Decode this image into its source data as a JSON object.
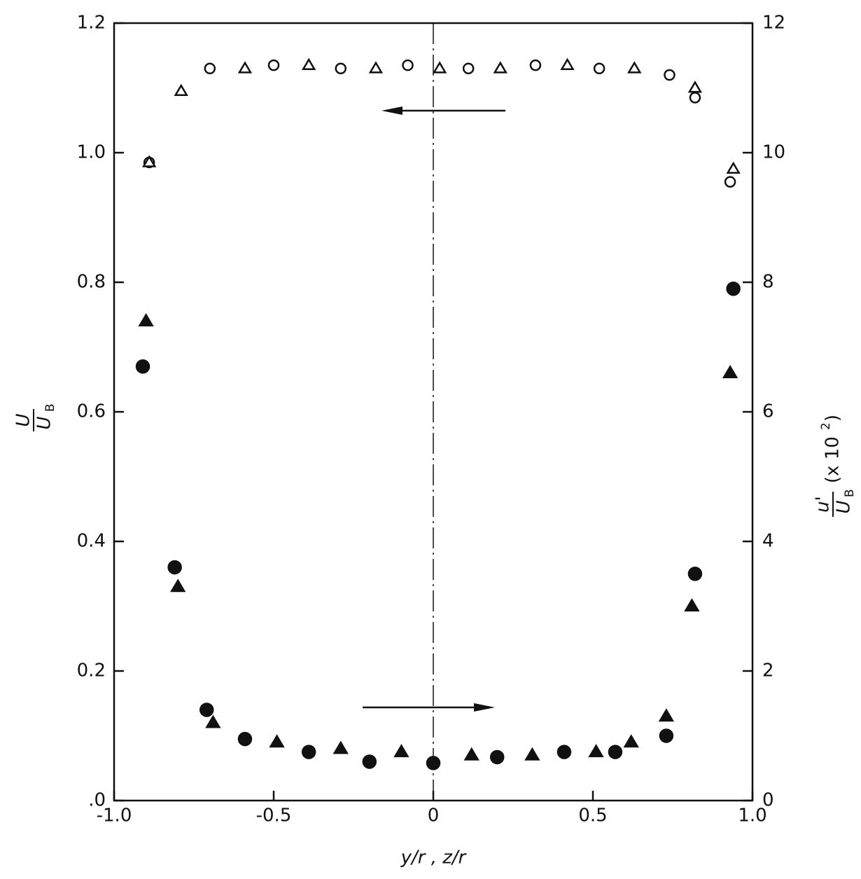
{
  "chart_data": {
    "type": "scatter",
    "xlabel": "y/r , z/r",
    "ylabel_numerator": "U",
    "ylabel_denominator": "U",
    "ylabel_subscript": "B",
    "y2label_numerator": "u'",
    "y2label_denominator": "U",
    "y2label_subscript": "B",
    "y2label_factor": [
      "(x 10",
      "2",
      ")"
    ],
    "xlim": [
      -1,
      1
    ],
    "xticks": [
      {
        "value": -1,
        "label": "-1.0"
      },
      -0.5,
      0,
      0.5,
      {
        "value": 1,
        "label": "1.0"
      }
    ],
    "ylim": [
      0,
      1.2
    ],
    "yticks": [
      {
        "value": 0,
        "label": ".0"
      },
      0.2,
      0.4,
      0.6,
      0.8,
      {
        "value": 1,
        "label": "1.0"
      },
      1.2
    ],
    "y2lim": [
      0,
      12
    ],
    "y2ticks": [
      0,
      2,
      4,
      6,
      8,
      10,
      12
    ],
    "series": [
      {
        "color": "#111111",
        "marker": "circle",
        "filled": false,
        "x": [
          -0.89,
          -0.7,
          -0.5,
          -0.29,
          -0.08,
          0.11,
          0.32,
          0.52,
          0.74,
          0.82,
          0.93
        ],
        "values": [
          0.985,
          1.13,
          1.135,
          1.13,
          1.135,
          1.13,
          1.135,
          1.13,
          1.12,
          1.085,
          0.955
        ]
      },
      {
        "color": "#111111",
        "marker": "triangle",
        "filled": false,
        "x": [
          -0.89,
          -0.79,
          -0.59,
          -0.39,
          -0.18,
          0.02,
          0.21,
          0.42,
          0.63,
          0.82,
          0.94
        ],
        "values": [
          0.985,
          1.095,
          1.13,
          1.135,
          1.13,
          1.13,
          1.13,
          1.135,
          1.13,
          1.1,
          0.975
        ]
      },
      {
        "color": "#111111",
        "marker": "circle",
        "filled": true,
        "axis": "y2",
        "x": [
          -0.91,
          -0.81,
          -0.71,
          -0.59,
          -0.39,
          -0.2,
          0,
          0.2,
          0.41,
          0.57,
          0.73,
          0.82,
          0.94
        ],
        "values": [
          6.7,
          3.6,
          1.4,
          0.95,
          0.75,
          0.6,
          0.58,
          0.67,
          0.75,
          0.75,
          1.0,
          3.5,
          7.9
        ]
      },
      {
        "color": "#111111",
        "marker": "triangle",
        "filled": true,
        "axis": "y2",
        "x": [
          -0.9,
          -0.8,
          -0.69,
          -0.49,
          -0.29,
          -0.1,
          0.12,
          0.31,
          0.51,
          0.62,
          0.73,
          0.81,
          0.93
        ],
        "values": [
          7.4,
          3.3,
          1.2,
          0.9,
          0.8,
          0.75,
          0.7,
          0.7,
          0.75,
          0.9,
          1.3,
          3.0,
          6.6
        ]
      }
    ]
  }
}
